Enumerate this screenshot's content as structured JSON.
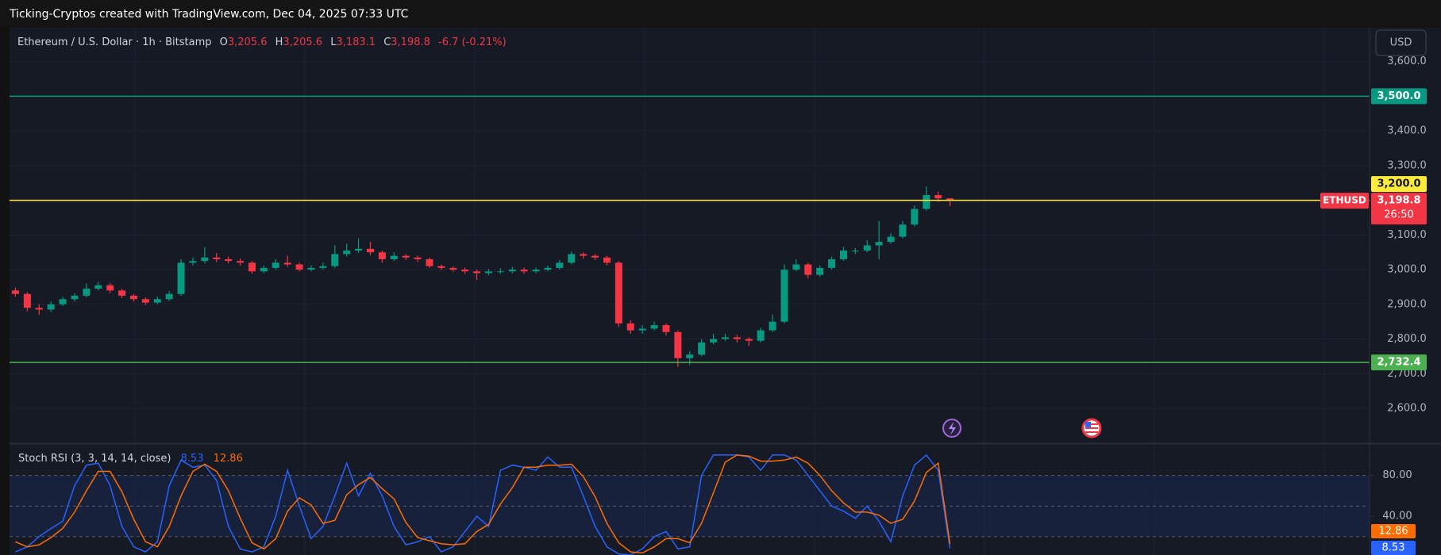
{
  "header": {
    "attribution": "Ticking-Cryptos created with TradingView.com, Dec 04, 2025 07:33 UTC",
    "currency_button": "USD"
  },
  "chart_data": [
    {
      "type": "candlestick",
      "symbol": "Ethereum / U.S. Dollar · 1h · Bitstamp",
      "quote": [
        {
          "prefix": "O",
          "text": "3,205.6"
        },
        {
          "prefix": "H",
          "text": "3,205.6"
        },
        {
          "prefix": "L",
          "text": "3,183.1"
        },
        {
          "prefix": "C",
          "text": "3,198.8"
        }
      ],
      "change": "-6.7 (-0.21%)",
      "open": [
        2940,
        2930,
        2890,
        2885,
        2900,
        2915,
        2925,
        2945,
        2955,
        2940,
        2925,
        2915,
        2905,
        2915,
        2930,
        3020,
        3025,
        3035,
        3030,
        3025,
        3020,
        2995,
        3005,
        3020,
        3015,
        3000,
        3005,
        3010,
        3045,
        3055,
        3060,
        3050,
        3030,
        3040,
        3035,
        3030,
        3010,
        3005,
        3000,
        2995,
        2990,
        2995,
        2995,
        3000,
        2995,
        3000,
        3005,
        3020,
        3045,
        3040,
        3035,
        3020,
        2845,
        2825,
        2830,
        2840,
        2820,
        2745,
        2755,
        2790,
        2800,
        2805,
        2800,
        2795,
        2825,
        2850,
        3000,
        3015,
        2985,
        3005,
        3030,
        3055,
        3055,
        3070,
        3080,
        3095,
        3130,
        3175,
        3215,
        3205.6
      ],
      "high": [
        2948,
        2935,
        2900,
        2908,
        2922,
        2932,
        2960,
        2965,
        2962,
        2945,
        2930,
        2920,
        2922,
        2938,
        3030,
        3035,
        3065,
        3048,
        3038,
        3032,
        3025,
        3012,
        3030,
        3040,
        3020,
        3012,
        3020,
        3070,
        3075,
        3090,
        3080,
        3055,
        3050,
        3045,
        3040,
        3035,
        3015,
        3010,
        3006,
        3000,
        3002,
        3004,
        3008,
        3006,
        3006,
        3012,
        3028,
        3052,
        3050,
        3045,
        3040,
        3025,
        2855,
        2840,
        2850,
        2845,
        2825,
        2765,
        2800,
        2815,
        2815,
        2812,
        2805,
        2832,
        2870,
        3015,
        3030,
        3020,
        3012,
        3038,
        3065,
        3062,
        3085,
        3140,
        3105,
        3140,
        3185,
        3240,
        3225,
        3205.6
      ],
      "low": [
        2922,
        2880,
        2870,
        2878,
        2895,
        2908,
        2920,
        2940,
        2932,
        2918,
        2908,
        2898,
        2900,
        2910,
        2925,
        3012,
        3018,
        3022,
        3018,
        3012,
        2988,
        2990,
        3000,
        3008,
        2995,
        2995,
        3000,
        3005,
        3038,
        3048,
        3042,
        3020,
        3025,
        3028,
        3022,
        3005,
        2998,
        2994,
        2988,
        2970,
        2984,
        2988,
        2990,
        2988,
        2990,
        2995,
        3000,
        3015,
        3032,
        3028,
        3012,
        2835,
        2815,
        2815,
        2825,
        2810,
        2720,
        2725,
        2750,
        2785,
        2795,
        2790,
        2780,
        2790,
        2820,
        2845,
        2995,
        2975,
        2980,
        3000,
        3025,
        3045,
        3050,
        3030,
        3075,
        3090,
        3125,
        3170,
        3195,
        3183.1
      ],
      "close": [
        2930,
        2890,
        2885,
        2900,
        2915,
        2925,
        2945,
        2955,
        2940,
        2925,
        2915,
        2905,
        2915,
        2930,
        3020,
        3025,
        3035,
        3030,
        3025,
        3020,
        2995,
        3005,
        3020,
        3015,
        3000,
        3005,
        3010,
        3045,
        3055,
        3060,
        3050,
        3030,
        3040,
        3035,
        3030,
        3010,
        3005,
        3000,
        2995,
        2990,
        2995,
        2995,
        3000,
        2995,
        3000,
        3005,
        3020,
        3045,
        3040,
        3035,
        3020,
        2845,
        2825,
        2830,
        2840,
        2820,
        2745,
        2755,
        2790,
        2800,
        2805,
        2800,
        2795,
        2825,
        2850,
        3000,
        3015,
        2985,
        3005,
        3030,
        3055,
        3055,
        3070,
        3080,
        3095,
        3130,
        3175,
        3215,
        3205.6,
        3198.8
      ],
      "up_color": "#089981",
      "down_color": "#f23645",
      "ylim": [
        2500,
        3700
      ],
      "yticks": [
        {
          "value": 2600,
          "label": "2,600.0"
        },
        {
          "value": 2700,
          "label": "2,700.0"
        },
        {
          "value": 2800,
          "label": "2,800.0"
        },
        {
          "value": 2900,
          "label": "2,900.0"
        },
        {
          "value": 3000,
          "label": "3,000.0"
        },
        {
          "value": 3100,
          "label": "3,100.0"
        },
        {
          "value": 3200,
          "label": "3,200.0"
        },
        {
          "value": 3300,
          "label": "3,300.0"
        },
        {
          "value": 3400,
          "label": "3,400.0"
        },
        {
          "value": 3500,
          "label": "3,500.0"
        },
        {
          "value": 3600,
          "label": "3,600.0"
        }
      ],
      "grid": true,
      "price_lines": [
        {
          "value": 3500,
          "label": "3,500.0",
          "color": "#089981"
        },
        {
          "value": 3200,
          "label": "3,200.0",
          "color": "#ffeb3b"
        },
        {
          "value": 2732.4,
          "label": "2,732.4",
          "color": "#4caf50"
        }
      ],
      "last_price": {
        "symbol": "ETHUSD",
        "value": 3198.8,
        "label": "3,198.8",
        "countdown": "26:50",
        "color": "#f23645"
      }
    },
    {
      "type": "line",
      "title": "Stoch RSI (3, 3, 14, 14, close)",
      "series": [
        {
          "color": "#2962ff",
          "values": [
            5,
            10,
            20,
            28,
            35,
            70,
            90,
            92,
            70,
            30,
            10,
            5,
            15,
            70,
            95,
            88,
            90,
            75,
            30,
            8,
            5,
            10,
            40,
            85,
            50,
            18,
            30,
            60,
            92,
            60,
            82,
            60,
            30,
            12,
            15,
            20,
            5,
            10,
            25,
            40,
            30,
            85,
            90,
            88,
            85,
            98,
            88,
            88,
            60,
            30,
            10,
            3,
            2,
            8,
            20,
            25,
            8,
            10,
            80,
            100,
            100,
            100,
            98,
            85,
            100,
            100,
            95,
            80,
            65,
            50,
            45,
            38,
            50,
            35,
            15,
            60,
            90,
            100,
            85,
            8.53
          ]
        },
        {
          "color": "#ff6d00",
          "values": [
            15,
            10,
            12,
            19,
            28,
            44,
            65,
            84,
            84,
            64,
            37,
            15,
            10,
            30,
            60,
            84,
            91,
            84,
            65,
            38,
            14,
            8,
            18,
            45,
            58,
            51,
            33,
            36,
            61,
            71,
            78,
            67,
            57,
            34,
            19,
            16,
            13,
            12,
            13,
            25,
            32,
            52,
            68,
            88,
            88,
            90,
            90,
            91,
            79,
            59,
            33,
            14,
            5,
            4,
            10,
            18,
            18,
            14,
            33,
            63,
            93,
            100,
            99,
            94,
            94,
            95,
            98,
            92,
            80,
            65,
            53,
            44,
            44,
            41,
            33,
            37,
            55,
            83,
            92,
            12.86
          ]
        }
      ],
      "ylim": [
        2,
        110
      ],
      "yticks": [
        {
          "value": 80,
          "label": "80.00"
        },
        {
          "value": 40,
          "label": "40.00"
        }
      ],
      "levels": [
        80,
        50,
        20
      ],
      "grid": true
    }
  ]
}
